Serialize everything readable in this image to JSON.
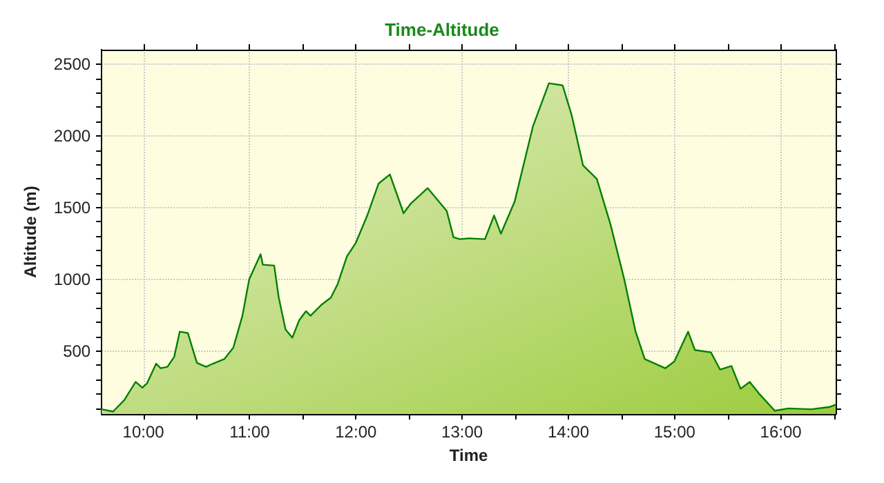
{
  "chart_data": {
    "type": "area",
    "title": "Time-Altitude",
    "xlabel": "Time",
    "ylabel": "Altitude (m)",
    "xlim": [
      9.607,
      16.516
    ],
    "ylim": [
      60,
      2600
    ],
    "xticks": [
      {
        "value": 10,
        "label": "10:00"
      },
      {
        "value": 10.5,
        "label": null
      },
      {
        "value": 11,
        "label": "11:00"
      },
      {
        "value": 11.5,
        "label": null
      },
      {
        "value": 12,
        "label": "12:00"
      },
      {
        "value": 12.5,
        "label": null
      },
      {
        "value": 13,
        "label": "13:00"
      },
      {
        "value": 13.5,
        "label": null
      },
      {
        "value": 14,
        "label": "14:00"
      },
      {
        "value": 14.5,
        "label": null
      },
      {
        "value": 15,
        "label": "15:00"
      },
      {
        "value": 15.5,
        "label": null
      },
      {
        "value": 16,
        "label": "16:00"
      },
      {
        "value": 16.5,
        "label": null
      }
    ],
    "yticks": [
      {
        "value": 100,
        "label": null
      },
      {
        "value": 200,
        "label": null
      },
      {
        "value": 300,
        "label": null
      },
      {
        "value": 400,
        "label": null
      },
      500,
      {
        "value": 600,
        "label": null
      },
      {
        "value": 700,
        "label": null
      },
      {
        "value": 800,
        "label": null
      },
      {
        "value": 900,
        "label": null
      },
      1000,
      {
        "value": 1100,
        "label": null
      },
      {
        "value": 1200,
        "label": null
      },
      {
        "value": 1300,
        "label": null
      },
      {
        "value": 1400,
        "label": null
      },
      1500,
      {
        "value": 1600,
        "label": null
      },
      {
        "value": 1700,
        "label": null
      },
      {
        "value": 1800,
        "label": null
      },
      {
        "value": 1900,
        "label": null
      },
      2000,
      {
        "value": 2100,
        "label": null
      },
      {
        "value": 2200,
        "label": null
      },
      {
        "value": 2300,
        "label": null
      },
      {
        "value": 2400,
        "label": null
      },
      2500
    ],
    "grid": true,
    "marker": "none",
    "line_style": "solid",
    "x": [
      9.607,
      9.714,
      9.82,
      9.927,
      9.99,
      10.034,
      10.12,
      10.162,
      10.226,
      10.29,
      10.342,
      10.419,
      10.46,
      10.504,
      10.59,
      10.654,
      10.761,
      10.846,
      10.932,
      10.996,
      11.103,
      11.124,
      11.231,
      11.274,
      11.338,
      11.402,
      11.466,
      11.53,
      11.573,
      11.68,
      11.765,
      11.829,
      11.915,
      12.0,
      12.107,
      12.214,
      12.32,
      12.449,
      12.513,
      12.675,
      12.855,
      12.919,
      12.98,
      13.064,
      13.215,
      13.301,
      13.365,
      13.494,
      13.666,
      13.817,
      13.946,
      14.031,
      14.138,
      14.268,
      14.397,
      14.526,
      14.633,
      14.719,
      14.912,
      14.998,
      15.127,
      15.191,
      15.342,
      15.428,
      15.535,
      15.621,
      15.707,
      15.793,
      15.943,
      16.072,
      16.287,
      16.459,
      16.516
    ],
    "series": [
      {
        "color": "#008000",
        "values": [
          93,
          77,
          157,
          284,
          243,
          274,
          411,
          379,
          389,
          459,
          634,
          624,
          522,
          417,
          389,
          411,
          443,
          522,
          745,
          999,
          1174,
          1101,
          1095,
          872,
          649,
          592,
          713,
          777,
          745,
          824,
          872,
          967,
          1158,
          1254,
          1444,
          1667,
          1730,
          1460,
          1524,
          1635,
          1476,
          1292,
          1279,
          1285,
          1279,
          1444,
          1317,
          1540,
          2064,
          2366,
          2351,
          2144,
          1794,
          1699,
          1381,
          999,
          634,
          443,
          379,
          427,
          634,
          506,
          490,
          370,
          395,
          236,
          284,
          204,
          83,
          99,
          93,
          109,
          125
        ]
      }
    ]
  }
}
